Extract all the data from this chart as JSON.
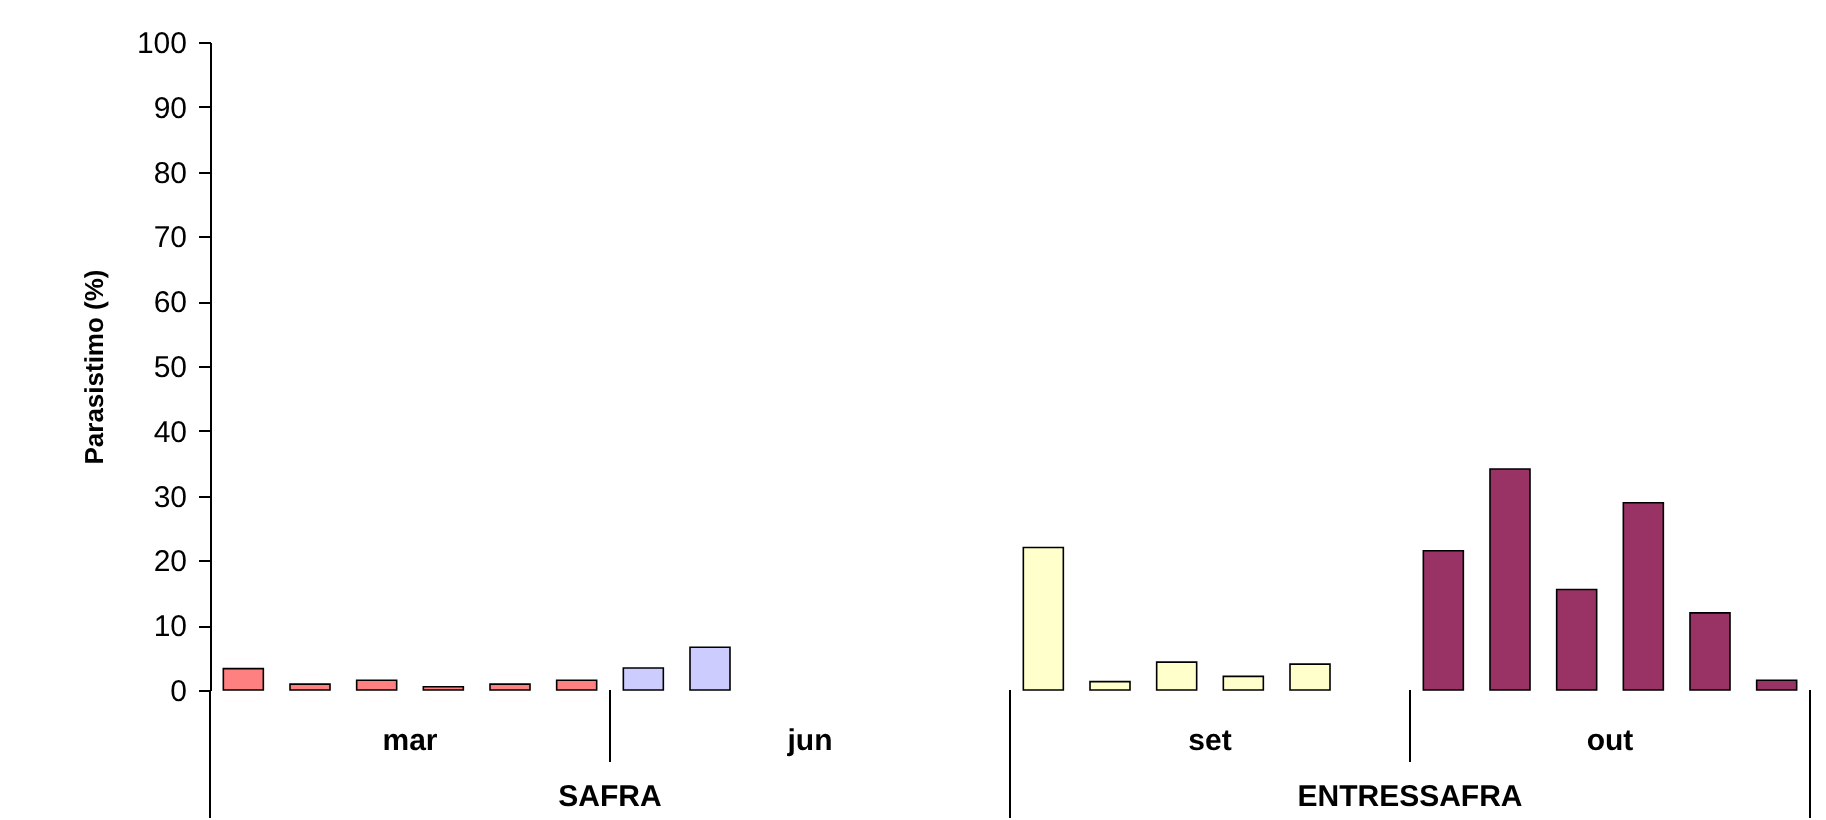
{
  "chart_data": {
    "type": "bar",
    "ylabel": "Parasistimo (%)",
    "categories": [
      "mar",
      "jun",
      "set",
      "out"
    ],
    "series": [
      {
        "values": [
          3.3,
          3.4,
          22,
          21.5
        ],
        "colors": [
          "#ff8080",
          "#ccccff",
          "#ffffcc",
          "#993366"
        ]
      },
      {
        "values": [
          0.9,
          6.6,
          1.3,
          34.1
        ],
        "colors": [
          "#ff8080",
          "#ccccff",
          "#ffffcc",
          "#993366"
        ]
      },
      {
        "values": [
          1.5,
          null,
          4.3,
          15.5
        ],
        "colors": [
          "#ff8080",
          null,
          "#ffffcc",
          "#993366"
        ]
      },
      {
        "values": [
          0.5,
          null,
          2.1,
          28.9
        ],
        "colors": [
          "#ff8080",
          null,
          "#ffffcc",
          "#993366"
        ]
      },
      {
        "values": [
          0.9,
          null,
          4,
          11.9
        ],
        "colors": [
          "#ff8080",
          null,
          "#ffffcc",
          "#993366"
        ]
      },
      {
        "values": [
          1.5,
          null,
          null,
          1.5
        ],
        "colors": [
          "#ff8080",
          null,
          null,
          "#993366"
        ]
      }
    ],
    "ylim": [
      0,
      100
    ],
    "yticks": [
      0,
      10,
      20,
      30,
      40,
      50,
      60,
      70,
      80,
      90,
      100
    ],
    "annotations": [
      "SAFRA",
      "ENTRESSAFRA"
    ]
  }
}
